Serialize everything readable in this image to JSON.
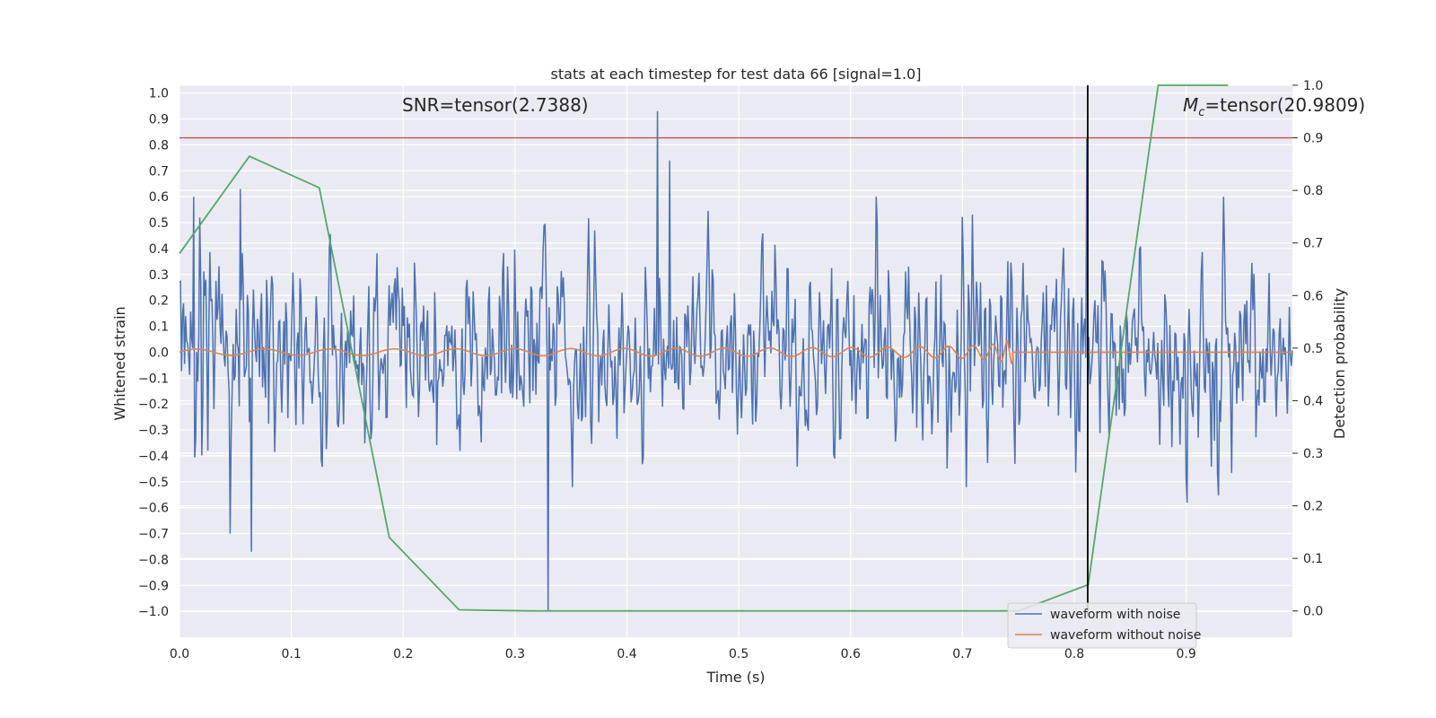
{
  "chart_data": {
    "type": "line",
    "title": "stats at each timestep for test data 66 [signal=1.0]",
    "xlabel": "Time (s)",
    "ylabel": "Whitened strain",
    "ylabel_right": "Detection probability",
    "xlim": [
      0.0,
      0.995
    ],
    "ylim": [
      -1.1,
      1.03
    ],
    "ylim_right": [
      -0.05,
      1.0
    ],
    "x_ticks": [
      "0.0",
      "0.1",
      "0.2",
      "0.3",
      "0.4",
      "0.5",
      "0.6",
      "0.7",
      "0.8",
      "0.9"
    ],
    "y_ticks": [
      "1.0",
      "0.9",
      "0.8",
      "0.7",
      "0.6",
      "0.5",
      "0.4",
      "0.3",
      "0.2",
      "0.1",
      "0.0",
      "-0.1",
      "-0.2",
      "-0.3",
      "-0.4",
      "-0.5",
      "-0.6",
      "-0.7",
      "-0.8",
      "-0.9",
      "-1.0"
    ],
    "y_ticks_right": [
      "1.0",
      "0.9",
      "0.8",
      "0.7",
      "0.6",
      "0.5",
      "0.4",
      "0.3",
      "0.2",
      "0.1",
      "0.0"
    ],
    "grid": true,
    "legend_position": "lower-right",
    "annotations": {
      "snr": "SNR=tensor(2.7388)",
      "mc_symbol": "M",
      "mc_sub": "c",
      "mc_value": "=tensor(20.9809)"
    },
    "series": [
      {
        "name": "waveform with noise",
        "color": "#4c72b0",
        "noise_seed": 66,
        "num_points": 1100,
        "noise_std": 0.27,
        "notable_points": [
          {
            "x": 0.33,
            "y": -1.0
          },
          {
            "x": 0.427,
            "y": 0.93
          },
          {
            "x": 0.438,
            "y": 0.74
          },
          {
            "x": 0.811,
            "y": 0.83
          },
          {
            "x": 0.054,
            "y": 0.63
          },
          {
            "x": 0.013,
            "y": 0.6
          },
          {
            "x": 0.064,
            "y": -0.77
          },
          {
            "x": 0.045,
            "y": -0.7
          }
        ]
      },
      {
        "name": "waveform without noise",
        "color": "#dd8452",
        "chirp": {
          "start_amplitude": 0.012,
          "end_amplitude": 0.12,
          "start_freq_hz": 16,
          "coalescence_time": 0.745
        }
      }
    ],
    "detection_probability": {
      "color": "#55a868",
      "x": [
        0.0,
        0.0625,
        0.125,
        0.1875,
        0.25,
        0.3125,
        0.375,
        0.4375,
        0.5,
        0.5625,
        0.625,
        0.6875,
        0.75,
        0.8125,
        0.875,
        0.9375
      ],
      "y": [
        0.68,
        0.865,
        0.805,
        0.14,
        0.002,
        0.0,
        0.0,
        0.0,
        0.0,
        0.0,
        0.0,
        0.0,
        0.0,
        0.05,
        1.0,
        1.0
      ]
    },
    "threshold": {
      "value": 0.9,
      "axis": "right",
      "color": "#c44e52"
    },
    "event_marker": {
      "x": 0.812,
      "color": "#000000"
    }
  }
}
